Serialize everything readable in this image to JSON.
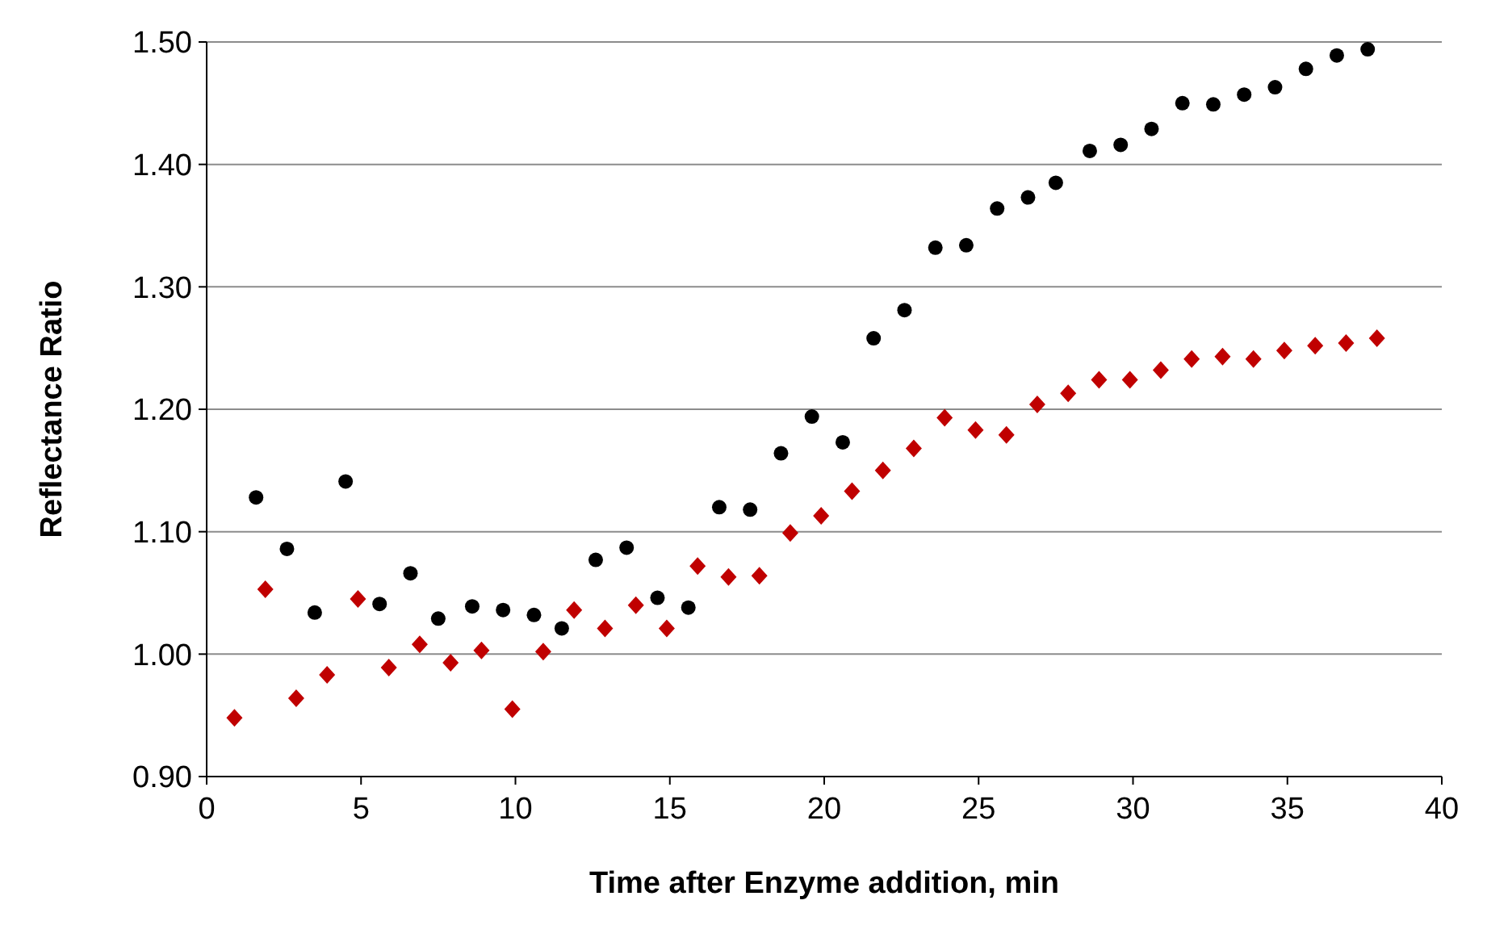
{
  "chart_data": {
    "type": "scatter",
    "xlabel": "Time after Enzyme addition, min",
    "ylabel": "Reflectance Ratio",
    "xlim": [
      0,
      40
    ],
    "xticks": [
      0,
      5,
      10,
      15,
      20,
      25,
      30,
      35,
      40
    ],
    "ylim": [
      0.9,
      1.5
    ],
    "yticks": [
      {
        "value": 0.9,
        "label": "0.90"
      },
      {
        "value": 1.0,
        "label": "1.00"
      },
      {
        "value": 1.1,
        "label": "1.10"
      },
      {
        "value": 1.2,
        "label": "1.20"
      },
      {
        "value": 1.3,
        "label": "1.30"
      },
      {
        "value": 1.4,
        "label": "1.40"
      },
      {
        "value": 1.5,
        "label": "1.50"
      }
    ],
    "grid": "y",
    "series": [
      {
        "color": "#000000",
        "marker": "circle",
        "x": [
          1.6,
          2.6,
          3.5,
          4.5,
          5.6,
          6.6,
          7.5,
          8.6,
          9.6,
          10.6,
          11.5,
          12.6,
          13.6,
          14.6,
          15.6,
          16.6,
          17.6,
          18.6,
          19.6,
          20.6,
          21.6,
          22.6,
          23.6,
          24.6,
          25.6,
          26.6,
          27.5,
          28.6,
          29.6,
          30.6,
          31.6,
          32.6,
          33.6,
          34.6,
          35.6,
          36.6,
          37.6
        ],
        "values": [
          1.128,
          1.086,
          1.034,
          1.141,
          1.041,
          1.066,
          1.029,
          1.039,
          1.036,
          1.032,
          1.021,
          1.077,
          1.087,
          1.046,
          1.038,
          1.12,
          1.118,
          1.164,
          1.194,
          1.173,
          1.258,
          1.281,
          1.332,
          1.334,
          1.364,
          1.373,
          1.385,
          1.411,
          1.416,
          1.429,
          1.45,
          1.449,
          1.457,
          1.463,
          1.478,
          1.489,
          1.494
        ]
      },
      {
        "color": "#c00000",
        "marker": "diamond",
        "x": [
          0.9,
          1.9,
          2.9,
          3.9,
          4.9,
          5.9,
          6.9,
          7.9,
          8.9,
          9.9,
          10.9,
          11.9,
          12.9,
          13.9,
          14.9,
          15.9,
          16.9,
          17.9,
          18.9,
          19.9,
          20.9,
          21.9,
          22.9,
          23.9,
          24.9,
          25.9,
          26.9,
          27.9,
          28.9,
          29.9,
          30.9,
          31.9,
          32.9,
          33.9,
          34.9,
          35.9,
          36.9,
          37.9
        ],
        "values": [
          0.948,
          1.053,
          0.964,
          0.983,
          1.045,
          0.989,
          1.008,
          0.993,
          1.003,
          0.955,
          1.002,
          1.036,
          1.021,
          1.04,
          1.021,
          1.072,
          1.063,
          1.064,
          1.099,
          1.113,
          1.133,
          1.15,
          1.168,
          1.193,
          1.183,
          1.179,
          1.204,
          1.213,
          1.224,
          1.224,
          1.232,
          1.241,
          1.243,
          1.241,
          1.248,
          1.252,
          1.254,
          1.258
        ]
      }
    ]
  }
}
